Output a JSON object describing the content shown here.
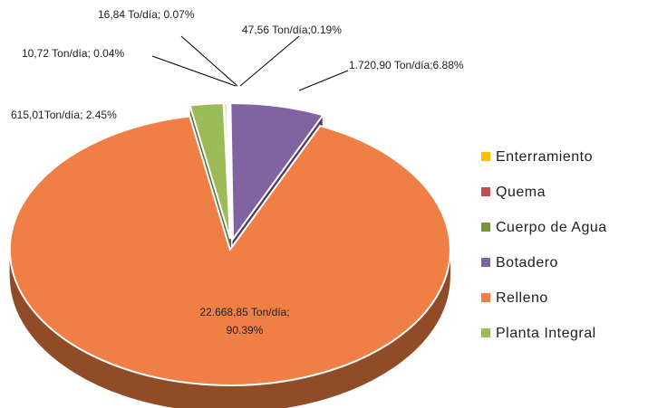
{
  "chart_data": {
    "type": "pie",
    "categories": [
      "Enterramiento",
      "Quema",
      "Cuerpo de Agua",
      "Botadero",
      "Relleno",
      "Planta Integral"
    ],
    "values": [
      0.19,
      0.07,
      0.04,
      6.88,
      90.39,
      2.45
    ],
    "value_labels": [
      "47,56 Ton/día;0.19%",
      "16,84 To/día; 0.07%",
      "10,72 Ton/día; 0.04%",
      "1.720,90 Ton/día;6.88%",
      "22.668,85 Ton/día; 90.39%",
      "615,01Ton/día; 2.45%"
    ],
    "colors": [
      "#ffc000",
      "#c0504d",
      "#77933c",
      "#8064a2",
      "#f07f45",
      "#9bbb59"
    ],
    "legend": "right"
  }
}
